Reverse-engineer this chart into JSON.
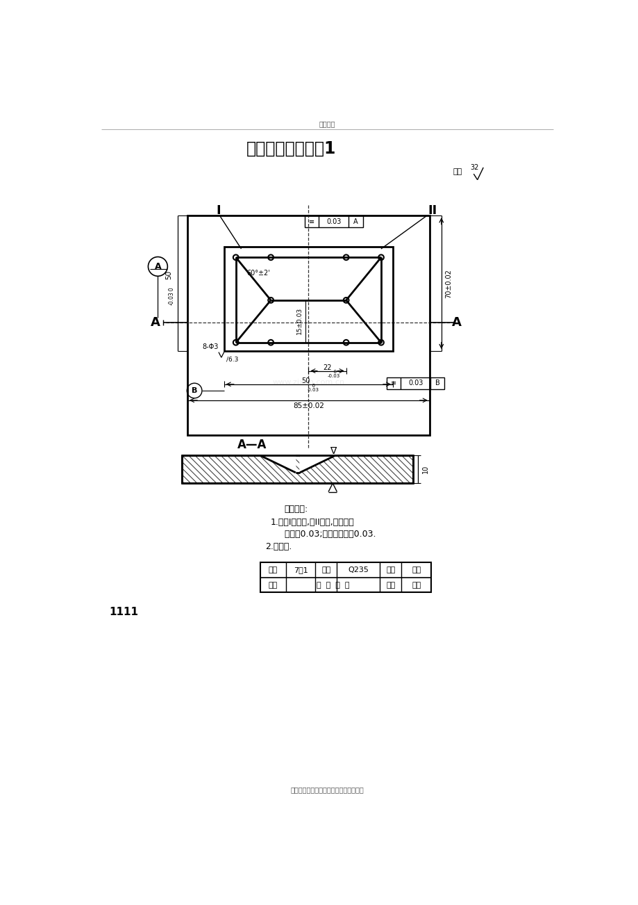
{
  "title": "高级钳工实操考题1",
  "header_text": "精品文档",
  "footer_text": "收集于网络，如有侵权请联系管理员删除",
  "watermark": "www.zixun.com.cn",
  "page_num": "1111",
  "bg_color": "#ffffff",
  "line_color": "#000000",
  "section_label_I": "I",
  "section_label_II": "II",
  "label_AA": "A—A",
  "dim_70": "70±0.02",
  "dim_85": "85±0.02",
  "dim_15": "15±0.03",
  "dim_60": "60°±2'",
  "dim_8phi3": "8-Φ3",
  "dim_6p3": "/6.3",
  "surface_roughness": "其余",
  "sr_value": "32",
  "exam_req_title": "考核要求:",
  "exam_req_1": "1.以件I为基准,件II配作,互换配合",
  "exam_req_2": "   间隙＜0.03;下侧错位量＜0.03.",
  "exam_req_3": "2.去毛刺.",
  "table_row1": [
    "图号",
    "7－1",
    "材料",
    "Q235",
    "等级",
    "高级"
  ],
  "table_row2": [
    "名称",
    "蝶  形  合  套",
    "",
    "",
    "工种",
    "钳工"
  ]
}
